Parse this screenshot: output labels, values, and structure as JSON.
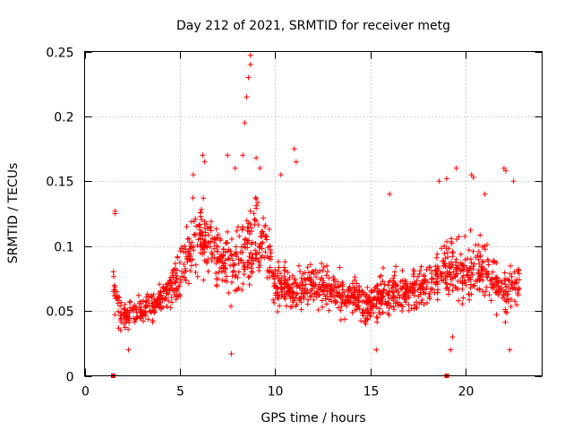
{
  "chart_data": {
    "type": "scatter",
    "title": "Day 212 of 2021, SRMTID for receiver metg",
    "xlabel": "GPS time / hours",
    "ylabel": "SRMTID / TECUs",
    "xlim": [
      0,
      24
    ],
    "ylim": [
      0,
      0.25
    ],
    "xticks": [
      0,
      5,
      10,
      15,
      20
    ],
    "xtick_labels": [
      "0",
      "5",
      "10",
      "15",
      "20"
    ],
    "yticks": [
      0,
      0.05,
      0.1,
      0.15,
      0.2,
      0.25
    ],
    "ytick_labels": [
      "0",
      "0.05",
      "0.1",
      "0.15",
      "0.2",
      "0.25"
    ],
    "grid": true,
    "marker": "plus",
    "color": "#ff0000",
    "baseline_markers": [
      {
        "x": 1.5,
        "y": 0
      },
      {
        "x": 19.0,
        "y": 0
      }
    ],
    "series": [
      {
        "name": "SRMTID",
        "envelope": {
          "x": [
            1.5,
            2.0,
            3.0,
            4.0,
            5.0,
            5.5,
            6.0,
            7.0,
            8.0,
            8.5,
            9.0,
            9.5,
            10.0,
            11.0,
            12.0,
            13.0,
            14.0,
            15.0,
            16.0,
            17.0,
            18.0,
            19.0,
            20.0,
            21.0,
            22.0,
            22.5,
            22.8
          ],
          "y_median": [
            0.065,
            0.045,
            0.05,
            0.06,
            0.075,
            0.1,
            0.11,
            0.09,
            0.085,
            0.1,
            0.11,
            0.1,
            0.07,
            0.065,
            0.07,
            0.065,
            0.06,
            0.055,
            0.065,
            0.065,
            0.07,
            0.085,
            0.08,
            0.085,
            0.06,
            0.07,
            0.075
          ],
          "y_spread": [
            0.025,
            0.012,
            0.012,
            0.015,
            0.025,
            0.04,
            0.04,
            0.03,
            0.03,
            0.045,
            0.04,
            0.035,
            0.022,
            0.02,
            0.022,
            0.02,
            0.018,
            0.018,
            0.022,
            0.022,
            0.025,
            0.03,
            0.03,
            0.03,
            0.02,
            0.025,
            0.02
          ]
        },
        "outliers": [
          {
            "x": 1.6,
            "y": 0.127
          },
          {
            "x": 1.6,
            "y": 0.125
          },
          {
            "x": 2.3,
            "y": 0.02
          },
          {
            "x": 5.7,
            "y": 0.155
          },
          {
            "x": 6.2,
            "y": 0.17
          },
          {
            "x": 6.3,
            "y": 0.165
          },
          {
            "x": 7.5,
            "y": 0.17
          },
          {
            "x": 7.7,
            "y": 0.017
          },
          {
            "x": 7.9,
            "y": 0.16
          },
          {
            "x": 8.3,
            "y": 0.17
          },
          {
            "x": 8.4,
            "y": 0.195
          },
          {
            "x": 8.5,
            "y": 0.215
          },
          {
            "x": 8.6,
            "y": 0.23
          },
          {
            "x": 8.7,
            "y": 0.24
          },
          {
            "x": 8.7,
            "y": 0.247
          },
          {
            "x": 9.0,
            "y": 0.168
          },
          {
            "x": 9.2,
            "y": 0.16
          },
          {
            "x": 10.3,
            "y": 0.155
          },
          {
            "x": 11.0,
            "y": 0.175
          },
          {
            "x": 11.1,
            "y": 0.165
          },
          {
            "x": 15.3,
            "y": 0.02
          },
          {
            "x": 16.0,
            "y": 0.14
          },
          {
            "x": 18.6,
            "y": 0.15
          },
          {
            "x": 19.0,
            "y": 0.152
          },
          {
            "x": 19.2,
            "y": 0.02
          },
          {
            "x": 19.3,
            "y": 0.03
          },
          {
            "x": 19.5,
            "y": 0.16
          },
          {
            "x": 20.3,
            "y": 0.155
          },
          {
            "x": 20.4,
            "y": 0.153
          },
          {
            "x": 21.0,
            "y": 0.14
          },
          {
            "x": 22.0,
            "y": 0.16
          },
          {
            "x": 22.1,
            "y": 0.158
          },
          {
            "x": 22.3,
            "y": 0.02
          },
          {
            "x": 22.5,
            "y": 0.15
          }
        ]
      }
    ]
  }
}
